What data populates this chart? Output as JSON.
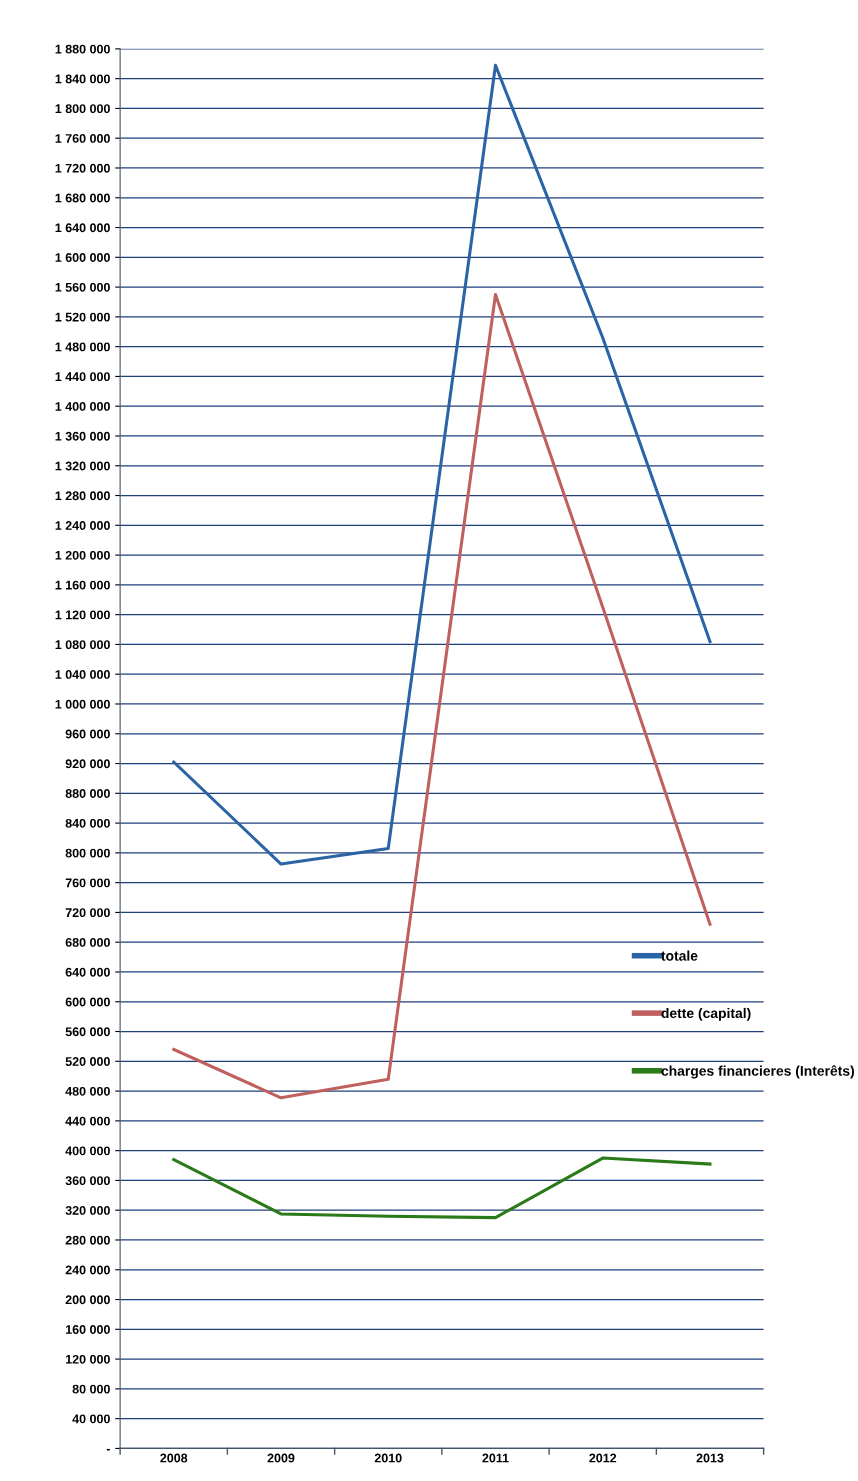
{
  "chart_data": {
    "type": "line",
    "categories": [
      "2008",
      "2009",
      "2010",
      "2011",
      "2012",
      "2013"
    ],
    "series": [
      {
        "name": "totale",
        "color": "#2a64a4",
        "values": [
          922000,
          785000,
          806000,
          1858000,
          1492000,
          1084000
        ]
      },
      {
        "name": "dette (capital)",
        "color": "#c0605e",
        "values": [
          536000,
          471000,
          496000,
          1550000,
          1130000,
          704000
        ]
      },
      {
        "name": "charges financieres (Interêts)",
        "color": "#2a7a1a",
        "values": [
          388000,
          315000,
          312000,
          310000,
          390000,
          382000
        ]
      }
    ],
    "ylim": [
      0,
      1880000
    ],
    "yticks": [
      {
        "value": 0,
        "label": "-"
      },
      {
        "value": 40000,
        "label": "40 000"
      },
      {
        "value": 80000,
        "label": "80 000"
      },
      {
        "value": 120000,
        "label": "120 000"
      },
      {
        "value": 160000,
        "label": "160 000"
      },
      {
        "value": 200000,
        "label": "200 000"
      },
      {
        "value": 240000,
        "label": "240 000"
      },
      {
        "value": 280000,
        "label": "280 000"
      },
      {
        "value": 320000,
        "label": "320 000"
      },
      {
        "value": 360000,
        "label": "360 000"
      },
      {
        "value": 400000,
        "label": "400 000"
      },
      {
        "value": 440000,
        "label": "440 000"
      },
      {
        "value": 480000,
        "label": "480 000"
      },
      {
        "value": 520000,
        "label": "520 000"
      },
      {
        "value": 560000,
        "label": "560 000"
      },
      {
        "value": 600000,
        "label": "600 000"
      },
      {
        "value": 640000,
        "label": "640 000"
      },
      {
        "value": 680000,
        "label": "680 000"
      },
      {
        "value": 720000,
        "label": "720 000"
      },
      {
        "value": 760000,
        "label": "760 000"
      },
      {
        "value": 800000,
        "label": "800 000"
      },
      {
        "value": 840000,
        "label": "840 000"
      },
      {
        "value": 880000,
        "label": "880 000"
      },
      {
        "value": 920000,
        "label": "920 000"
      },
      {
        "value": 960000,
        "label": "960 000"
      },
      {
        "value": 1000000,
        "label": "1 000 000"
      },
      {
        "value": 1040000,
        "label": "1 040 000"
      },
      {
        "value": 1080000,
        "label": "1 080 000"
      },
      {
        "value": 1120000,
        "label": "1 120 000"
      },
      {
        "value": 1160000,
        "label": "1 160 000"
      },
      {
        "value": 1200000,
        "label": "1 200 000"
      },
      {
        "value": 1240000,
        "label": "1 240 000"
      },
      {
        "value": 1280000,
        "label": "1 280 000"
      },
      {
        "value": 1320000,
        "label": "1 320 000"
      },
      {
        "value": 1360000,
        "label": "1 360 000"
      },
      {
        "value": 1400000,
        "label": "1 400 000"
      },
      {
        "value": 1440000,
        "label": "1 440 000"
      },
      {
        "value": 1480000,
        "label": "1 480 000"
      },
      {
        "value": 1520000,
        "label": "1 520 000"
      },
      {
        "value": 1560000,
        "label": "1 560 000"
      },
      {
        "value": 1600000,
        "label": "1 600 000"
      },
      {
        "value": 1640000,
        "label": "1 640 000"
      },
      {
        "value": 1680000,
        "label": "1 680 000"
      },
      {
        "value": 1720000,
        "label": "1 720 000"
      },
      {
        "value": 1760000,
        "label": "1 760 000"
      },
      {
        "value": 1800000,
        "label": "1 800 000"
      },
      {
        "value": 1840000,
        "label": "1 840 000"
      },
      {
        "value": 1880000,
        "label": "1 880 000"
      }
    ],
    "grid": "y",
    "legend": "right",
    "marker": "none",
    "line_style": "solid"
  }
}
